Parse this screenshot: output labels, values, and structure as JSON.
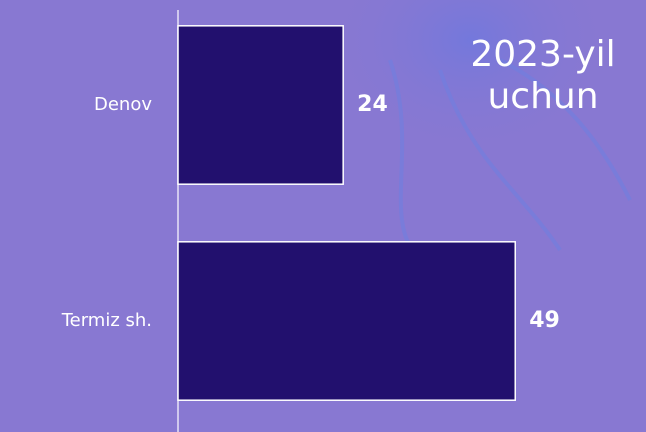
{
  "chart_data": {
    "type": "bar",
    "orientation": "horizontal",
    "title": "2023-yil uchun",
    "categories": [
      "Denov",
      "Termiz sh."
    ],
    "values": [
      24,
      49
    ],
    "color": "#22106e",
    "xlim": [
      0,
      68
    ]
  }
}
